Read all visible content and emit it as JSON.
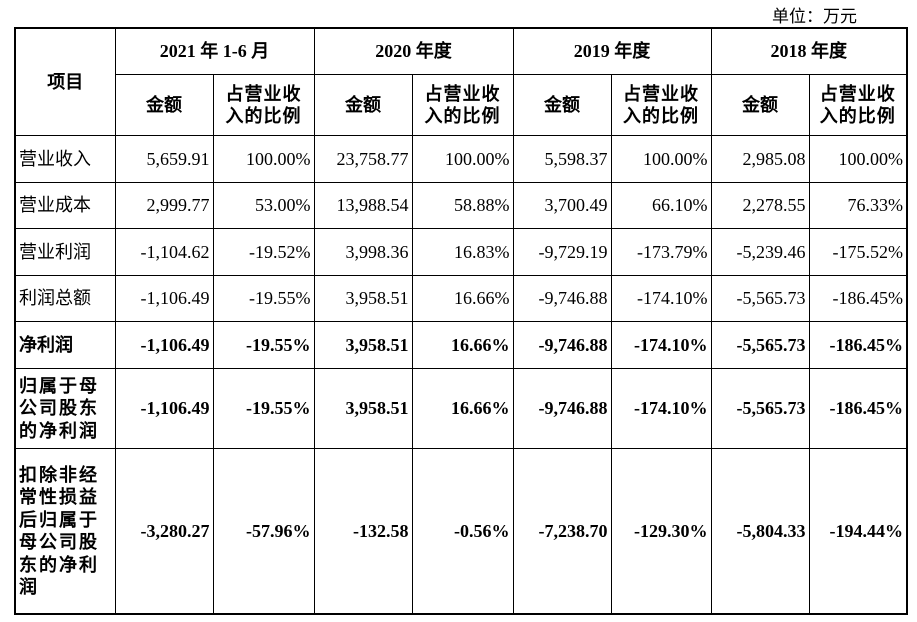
{
  "unit_label": "单位：万元",
  "table": {
    "corner_header": "项目",
    "periods": [
      "2021 年 1-6 月",
      "2020 年度",
      "2019 年度",
      "2018 年度"
    ],
    "sub_headers": {
      "amount": "金额",
      "ratio": "占营业收入的比例"
    },
    "rows": [
      {
        "label": "营业收入",
        "bold": false,
        "cells": [
          "5,659.91",
          "100.00%",
          "23,758.77",
          "100.00%",
          "5,598.37",
          "100.00%",
          "2,985.08",
          "100.00%"
        ]
      },
      {
        "label": "营业成本",
        "bold": false,
        "cells": [
          "2,999.77",
          "53.00%",
          "13,988.54",
          "58.88%",
          "3,700.49",
          "66.10%",
          "2,278.55",
          "76.33%"
        ]
      },
      {
        "label": "营业利润",
        "bold": false,
        "cells": [
          "-1,104.62",
          "-19.52%",
          "3,998.36",
          "16.83%",
          "-9,729.19",
          "-173.79%",
          "-5,239.46",
          "-175.52%"
        ]
      },
      {
        "label": "利润总额",
        "bold": false,
        "cells": [
          "-1,106.49",
          "-19.55%",
          "3,958.51",
          "16.66%",
          "-9,746.88",
          "-174.10%",
          "-5,565.73",
          "-186.45%"
        ]
      },
      {
        "label": "净利润",
        "bold": true,
        "cells": [
          "-1,106.49",
          "-19.55%",
          "3,958.51",
          "16.66%",
          "-9,746.88",
          "-174.10%",
          "-5,565.73",
          "-186.45%"
        ]
      },
      {
        "label": "归属于母公司股东的净利润",
        "bold": true,
        "cells": [
          "-1,106.49",
          "-19.55%",
          "3,958.51",
          "16.66%",
          "-9,746.88",
          "-174.10%",
          "-5,565.73",
          "-186.45%"
        ]
      },
      {
        "label": "扣除非经常性损益后归属于母公司股东的净利润",
        "bold": true,
        "cells": [
          "-3,280.27",
          "-57.96%",
          "-132.58",
          "-0.56%",
          "-7,238.70",
          "-129.30%",
          "-5,804.33",
          "-194.44%"
        ]
      }
    ]
  }
}
